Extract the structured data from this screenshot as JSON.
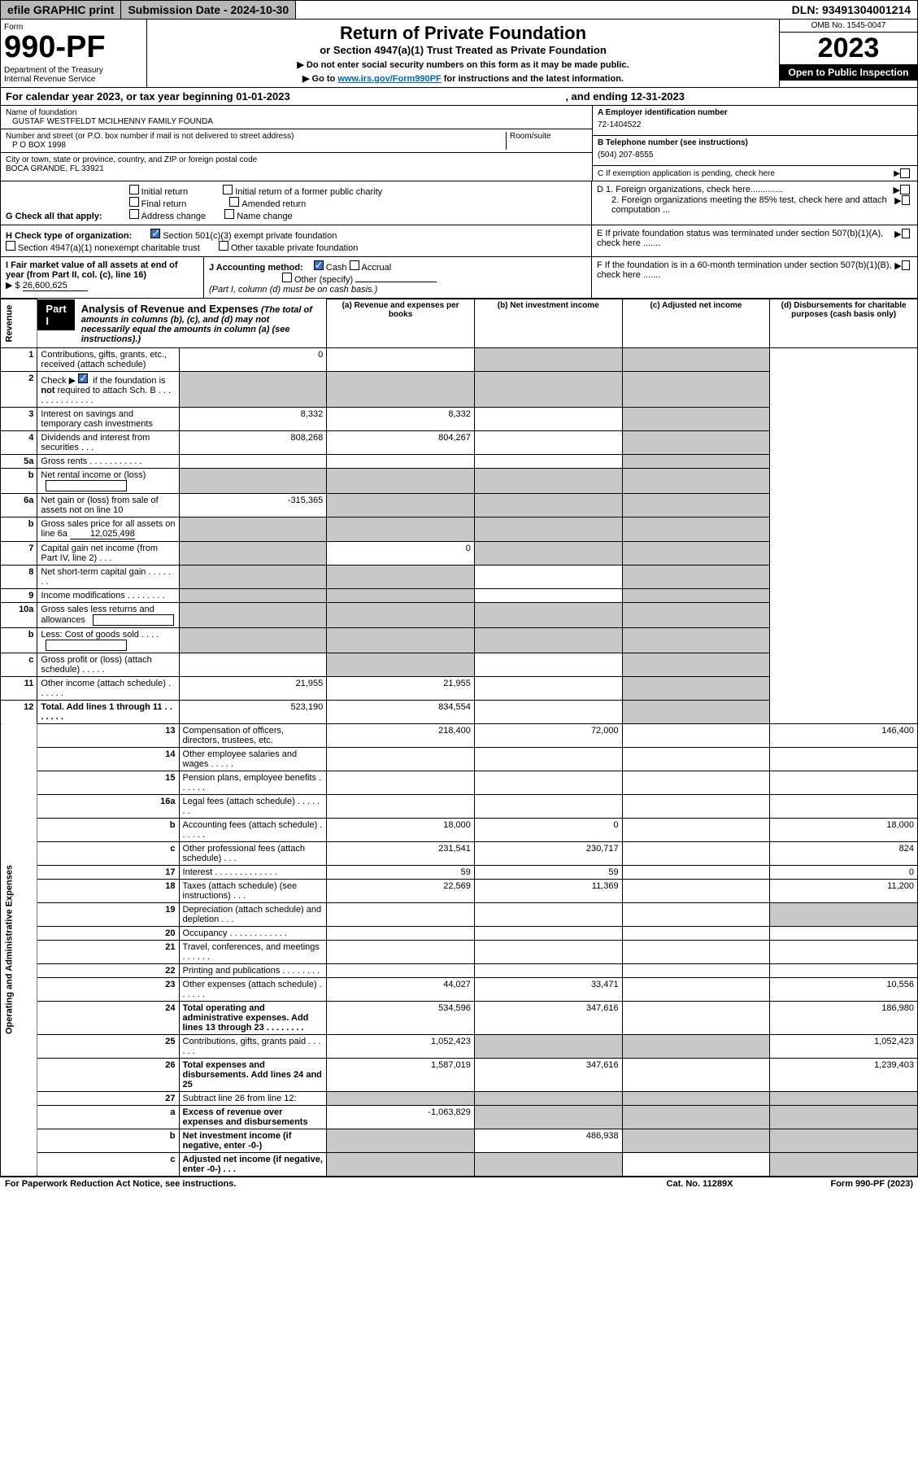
{
  "topbar": {
    "efile": "efile GRAPHIC print",
    "subdate_label": "Submission Date - 2024-10-30",
    "dln": "DLN: 93491304001214"
  },
  "header": {
    "form_word": "Form",
    "form_num": "990-PF",
    "dept": "Department of the Treasury\nInternal Revenue Service",
    "title": "Return of Private Foundation",
    "subtitle": "or Section 4947(a)(1) Trust Treated as Private Foundation",
    "note1": "▶ Do not enter social security numbers on this form as it may be made public.",
    "note2_pre": "▶ Go to ",
    "note2_link": "www.irs.gov/Form990PF",
    "note2_post": " for instructions and the latest information.",
    "omb": "OMB No. 1545-0047",
    "year": "2023",
    "open": "Open to Public Inspection"
  },
  "cal": {
    "text_a": "For calendar year 2023, or tax year beginning 01-01-2023",
    "text_b": ", and ending 12-31-2023"
  },
  "id": {
    "name_lbl": "Name of foundation",
    "name": "GUSTAF WESTFELDT MCILHENNY FAMILY FOUNDA",
    "addr_lbl": "Number and street (or P.O. box number if mail is not delivered to street address)",
    "room_lbl": "Room/suite",
    "addr": "P O BOX 1998",
    "city_lbl": "City or town, state or province, country, and ZIP or foreign postal code",
    "city": "BOCA GRANDE, FL  33921",
    "ein_lbl": "A Employer identification number",
    "ein": "72-1404522",
    "tel_lbl": "B Telephone number (see instructions)",
    "tel": "(504) 207-8555",
    "c_lbl": "C If exemption application is pending, check here",
    "d1_lbl": "D 1. Foreign organizations, check here.............",
    "d2_lbl": "2. Foreign organizations meeting the 85% test, check here and attach computation ...",
    "e_lbl": "E  If private foundation status was terminated under section 507(b)(1)(A), check here .......",
    "f_lbl": "F  If the foundation is in a 60-month termination under section 507(b)(1)(B), check here ......."
  },
  "g": {
    "lbl": "G Check all that apply:",
    "opts": [
      "Initial return",
      "Initial return of a former public charity",
      "Final return",
      "Amended return",
      "Address change",
      "Name change"
    ]
  },
  "h": {
    "lbl": "H Check type of organization:",
    "opt1": "Section 501(c)(3) exempt private foundation",
    "opt2": "Section 4947(a)(1) nonexempt charitable trust",
    "opt3": "Other taxable private foundation"
  },
  "i": {
    "lbl": "I Fair market value of all assets at end of year (from Part II, col. (c), line 16)",
    "val_lbl": "▶ $",
    "val": "26,600,625"
  },
  "j": {
    "lbl": "J Accounting method:",
    "cash": "Cash",
    "accrual": "Accrual",
    "other": "Other (specify)",
    "note": "(Part I, column (d) must be on cash basis.)"
  },
  "part1": {
    "tag": "Part I",
    "title": "Analysis of Revenue and Expenses",
    "title_note": "(The total of amounts in columns (b), (c), and (d) may not necessarily equal the amounts in column (a) (see instructions).)",
    "col_a": "(a) Revenue and expenses per books",
    "col_b": "(b) Net investment income",
    "col_c": "(c) Adjusted net income",
    "col_d": "(d) Disbursements for charitable purposes (cash basis only)"
  },
  "sides": {
    "rev": "Revenue",
    "exp": "Operating and Administrative Expenses"
  },
  "rows": [
    {
      "n": "1",
      "lbl": "Contributions, gifts, grants, etc., received (attach schedule)",
      "a": "0",
      "b": "",
      "c": "",
      "d": "",
      "shade_c": true,
      "shade_d": true
    },
    {
      "n": "2",
      "lbl": "Check ▶ ☑ if the foundation is not required to attach Sch. B",
      "a": "",
      "b": "",
      "c": "",
      "d": "",
      "shade_a": true,
      "shade_b": true,
      "shade_c": true,
      "shade_d": true,
      "bold_not": true
    },
    {
      "n": "3",
      "lbl": "Interest on savings and temporary cash investments",
      "a": "8,332",
      "b": "8,332",
      "c": "",
      "d": "",
      "shade_d": true
    },
    {
      "n": "4",
      "lbl": "Dividends and interest from securities   .   .   .",
      "a": "808,268",
      "b": "804,267",
      "c": "",
      "d": "",
      "shade_d": true
    },
    {
      "n": "5a",
      "lbl": "Gross rents   .   .   .   .   .   .   .   .   .   .   .",
      "a": "",
      "b": "",
      "c": "",
      "d": "",
      "shade_d": true
    },
    {
      "n": "b",
      "lbl": "Net rental income or (loss)",
      "a": "",
      "b": "",
      "c": "",
      "d": "",
      "shade_a": true,
      "shade_b": true,
      "shade_c": true,
      "shade_d": true,
      "inline_box": true
    },
    {
      "n": "6a",
      "lbl": "Net gain or (loss) from sale of assets not on line 10",
      "a": "-315,365",
      "b": "",
      "c": "",
      "d": "",
      "shade_b": true,
      "shade_c": true,
      "shade_d": true
    },
    {
      "n": "b",
      "lbl": "Gross sales price for all assets on line 6a",
      "inline_val": "12,025,498",
      "a": "",
      "b": "",
      "c": "",
      "d": "",
      "shade_a": true,
      "shade_b": true,
      "shade_c": true,
      "shade_d": true
    },
    {
      "n": "7",
      "lbl": "Capital gain net income (from Part IV, line 2)   .   .   .",
      "a": "",
      "b": "0",
      "c": "",
      "d": "",
      "shade_a": true,
      "shade_c": true,
      "shade_d": true
    },
    {
      "n": "8",
      "lbl": "Net short-term capital gain   .   .   .   .   .   .   .",
      "a": "",
      "b": "",
      "c": "",
      "d": "",
      "shade_a": true,
      "shade_b": true,
      "shade_d": true
    },
    {
      "n": "9",
      "lbl": "Income modifications   .   .   .   .   .   .   .   .",
      "a": "",
      "b": "",
      "c": "",
      "d": "",
      "shade_a": true,
      "shade_b": true,
      "shade_d": true
    },
    {
      "n": "10a",
      "lbl": "Gross sales less returns and allowances",
      "a": "",
      "b": "",
      "c": "",
      "d": "",
      "shade_a": true,
      "shade_b": true,
      "shade_c": true,
      "shade_d": true,
      "inline_box": true
    },
    {
      "n": "b",
      "lbl": "Less: Cost of goods sold   .   .   .   .",
      "a": "",
      "b": "",
      "c": "",
      "d": "",
      "shade_a": true,
      "shade_b": true,
      "shade_c": true,
      "shade_d": true,
      "inline_box": true
    },
    {
      "n": "c",
      "lbl": "Gross profit or (loss) (attach schedule)   .   .   .   .   .",
      "a": "",
      "b": "",
      "c": "",
      "d": "",
      "shade_b": true,
      "shade_d": true
    },
    {
      "n": "11",
      "lbl": "Other income (attach schedule)   .   .   .   .   .   .",
      "a": "21,955",
      "b": "21,955",
      "c": "",
      "d": "",
      "shade_d": true
    },
    {
      "n": "12",
      "lbl": "Total. Add lines 1 through 11   .   .   .   .   .   .   .",
      "a": "523,190",
      "b": "834,554",
      "c": "",
      "d": "",
      "shade_d": true,
      "bold": true
    },
    {
      "n": "13",
      "lbl": "Compensation of officers, directors, trustees, etc.",
      "a": "218,400",
      "b": "72,000",
      "c": "",
      "d": "146,400"
    },
    {
      "n": "14",
      "lbl": "Other employee salaries and wages   .   .   .   .   .",
      "a": "",
      "b": "",
      "c": "",
      "d": ""
    },
    {
      "n": "15",
      "lbl": "Pension plans, employee benefits   .   .   .   .   .   .",
      "a": "",
      "b": "",
      "c": "",
      "d": ""
    },
    {
      "n": "16a",
      "lbl": "Legal fees (attach schedule)   .   .   .   .   .   .   .",
      "a": "",
      "b": "",
      "c": "",
      "d": ""
    },
    {
      "n": "b",
      "lbl": "Accounting fees (attach schedule)  .   .   .   .   .   .",
      "a": "18,000",
      "b": "0",
      "c": "",
      "d": "18,000"
    },
    {
      "n": "c",
      "lbl": "Other professional fees (attach schedule)   .   .   .",
      "a": "231,541",
      "b": "230,717",
      "c": "",
      "d": "824"
    },
    {
      "n": "17",
      "lbl": "Interest   .   .   .   .   .   .   .   .   .   .   .   .   .",
      "a": "59",
      "b": "59",
      "c": "",
      "d": "0"
    },
    {
      "n": "18",
      "lbl": "Taxes (attach schedule) (see instructions)   .   .   .",
      "a": "22,569",
      "b": "11,369",
      "c": "",
      "d": "11,200"
    },
    {
      "n": "19",
      "lbl": "Depreciation (attach schedule) and depletion   .   .   .",
      "a": "",
      "b": "",
      "c": "",
      "d": "",
      "shade_d": true
    },
    {
      "n": "20",
      "lbl": "Occupancy   .   .   .   .   .   .   .   .   .   .   .   .",
      "a": "",
      "b": "",
      "c": "",
      "d": ""
    },
    {
      "n": "21",
      "lbl": "Travel, conferences, and meetings   .   .   .   .   .   .",
      "a": "",
      "b": "",
      "c": "",
      "d": ""
    },
    {
      "n": "22",
      "lbl": "Printing and publications   .   .   .   .   .   .   .   .",
      "a": "",
      "b": "",
      "c": "",
      "d": ""
    },
    {
      "n": "23",
      "lbl": "Other expenses (attach schedule)   .   .   .   .   .   .",
      "a": "44,027",
      "b": "33,471",
      "c": "",
      "d": "10,556"
    },
    {
      "n": "24",
      "lbl": "Total operating and administrative expenses. Add lines 13 through 23   .   .   .   .   .   .   .   .",
      "a": "534,596",
      "b": "347,616",
      "c": "",
      "d": "186,980",
      "bold": true
    },
    {
      "n": "25",
      "lbl": "Contributions, gifts, grants paid   .   .   .   .   .   .",
      "a": "1,052,423",
      "b": "",
      "c": "",
      "d": "1,052,423",
      "shade_b": true,
      "shade_c": true
    },
    {
      "n": "26",
      "lbl": "Total expenses and disbursements. Add lines 24 and 25",
      "a": "1,587,019",
      "b": "347,616",
      "c": "",
      "d": "1,239,403",
      "bold": true
    },
    {
      "n": "27",
      "lbl": "Subtract line 26 from line 12:",
      "a": "",
      "b": "",
      "c": "",
      "d": "",
      "shade_a": true,
      "shade_b": true,
      "shade_c": true,
      "shade_d": true
    },
    {
      "n": "a",
      "lbl": "Excess of revenue over expenses and disbursements",
      "a": "-1,063,829",
      "b": "",
      "c": "",
      "d": "",
      "shade_b": true,
      "shade_c": true,
      "shade_d": true,
      "bold": true
    },
    {
      "n": "b",
      "lbl": "Net investment income (if negative, enter -0-)",
      "a": "",
      "b": "486,938",
      "c": "",
      "d": "",
      "shade_a": true,
      "shade_c": true,
      "shade_d": true,
      "bold": true
    },
    {
      "n": "c",
      "lbl": "Adjusted net income (if negative, enter -0-)   .   .   .",
      "a": "",
      "b": "",
      "c": "",
      "d": "",
      "shade_a": true,
      "shade_b": true,
      "shade_d": true,
      "bold": true
    }
  ],
  "footer": {
    "left": "For Paperwork Reduction Act Notice, see instructions.",
    "mid": "Cat. No. 11289X",
    "right": "Form 990-PF (2023)"
  }
}
